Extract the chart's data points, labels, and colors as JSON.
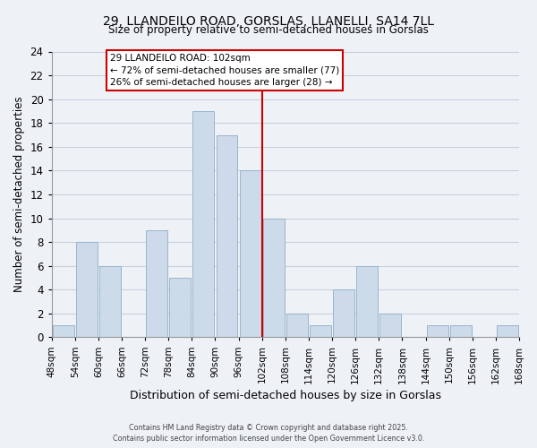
{
  "title": "29, LLANDEILO ROAD, GORSLAS, LLANELLI, SA14 7LL",
  "subtitle": "Size of property relative to semi-detached houses in Gorslas",
  "xlabel": "Distribution of semi-detached houses by size in Gorslas",
  "ylabel": "Number of semi-detached properties",
  "bin_edges": [
    48,
    54,
    60,
    66,
    72,
    78,
    84,
    90,
    96,
    102,
    108,
    114,
    120,
    126,
    132,
    138,
    144,
    150,
    156,
    162,
    168
  ],
  "counts": [
    1,
    8,
    6,
    0,
    9,
    5,
    19,
    17,
    14,
    10,
    2,
    1,
    4,
    6,
    2,
    0,
    1,
    1,
    0,
    1
  ],
  "bar_color": "#cddaea",
  "bar_edge_color": "#9ab4cc",
  "marker_value": 102,
  "marker_color": "#cc0000",
  "ylim": [
    0,
    24
  ],
  "yticks": [
    0,
    2,
    4,
    6,
    8,
    10,
    12,
    14,
    16,
    18,
    20,
    22,
    24
  ],
  "annotation_title": "29 LLANDEILO ROAD: 102sqm",
  "annotation_line1": "← 72% of semi-detached houses are smaller (77)",
  "annotation_line2": "26% of semi-detached houses are larger (28) →",
  "footer1": "Contains HM Land Registry data © Crown copyright and database right 2025.",
  "footer2": "Contains public sector information licensed under the Open Government Licence v3.0.",
  "background_color": "#eef2f7",
  "plot_background": "#eef2f7",
  "grid_color": "#c8d0dc"
}
